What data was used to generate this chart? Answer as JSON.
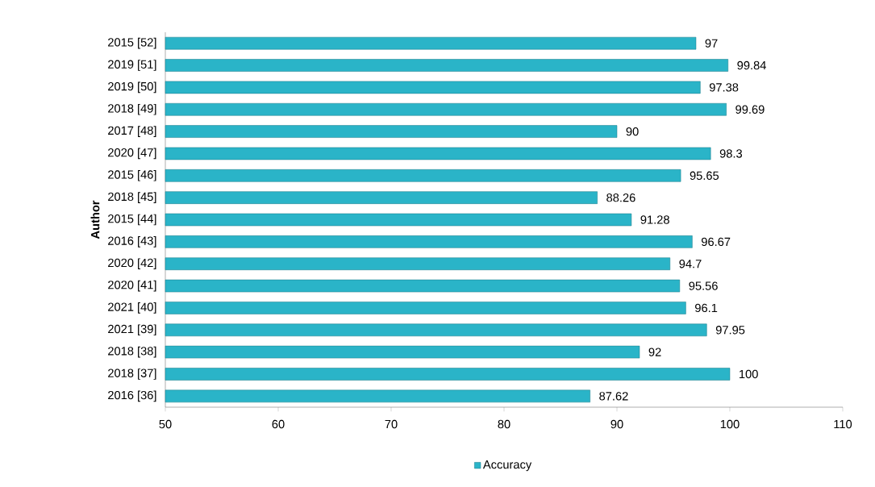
{
  "chart_data": {
    "type": "bar",
    "orientation": "horizontal",
    "ylabel": "Author",
    "categories": [
      "2015  [52]",
      "2019  [51]",
      "2019  [50]",
      "2018  [49]",
      "2017  [48]",
      "2020  [47]",
      "2015  [46]",
      "2018  [45]",
      "2015  [44]",
      "2016  [43]",
      "2020  [42]",
      "2020  [41]",
      "2021  [40]",
      "2021  [39]",
      "2018  [38]",
      "2018  [37]",
      "2016   [36]"
    ],
    "series": [
      {
        "name": "Accuracy",
        "color": "#2ab4c8",
        "values": [
          97,
          99.84,
          97.38,
          99.69,
          90,
          98.3,
          95.65,
          88.26,
          91.28,
          96.67,
          94.7,
          95.56,
          96.1,
          97.95,
          92,
          100,
          87.62
        ]
      }
    ],
    "xlim": [
      50,
      110
    ],
    "xticks": [
      50,
      60,
      70,
      80,
      90,
      100,
      110
    ],
    "data_labels": true,
    "legend": "bottom",
    "grid": false
  }
}
